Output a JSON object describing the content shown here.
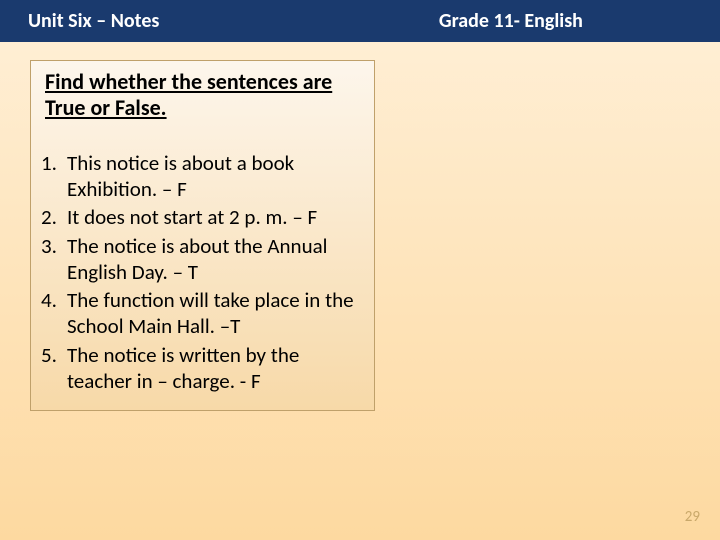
{
  "header": {
    "left": "Unit  Six – Notes",
    "right": "Grade 11- English"
  },
  "instruction": "Find whether the sentences are True or False.",
  "items": [
    {
      "num": "1.",
      "text": "This notice is about a book Exhibition. – F"
    },
    {
      "num": "2.",
      "text": "It does not start at 2 p. m. – F"
    },
    {
      "num": "3.",
      "text": "The notice is about the Annual English Day. – T"
    },
    {
      "num": "4.",
      "text": "The function will take place in the School Main Hall. –T"
    },
    {
      "num": "5.",
      "text": "The notice is written by the teacher in – charge. - F"
    }
  ],
  "page_number": "29",
  "colors": {
    "header_bg": "#1a3a6e",
    "header_text": "#ffffff",
    "body_grad_top": "#fff0d8",
    "body_grad_bottom": "#fdd9a0",
    "box_border": "#bfa06a",
    "box_grad_top": "#fdf6ec",
    "box_grad_bottom": "#f7d9a8",
    "page_num_color": "#c9a86a"
  },
  "typography": {
    "header_fontsize": 20,
    "instruction_fontsize": 22,
    "item_fontsize": 21,
    "pagenum_fontsize": 15,
    "font_family": "Calibri"
  }
}
